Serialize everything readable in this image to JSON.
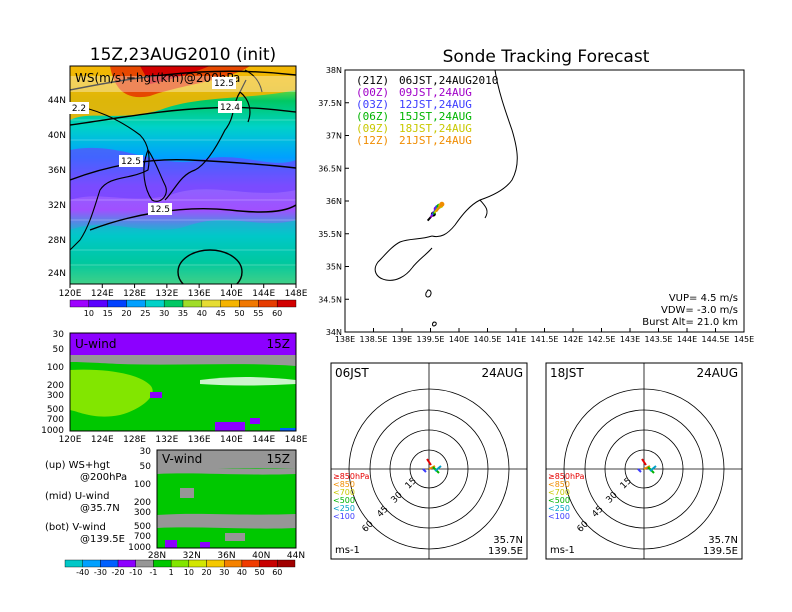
{
  "titles": {
    "left": "15Z,23AUG2010 (init)",
    "right": "Sonde Tracking Forecast"
  },
  "colors": {
    "ws_scale": [
      "#9e00ff",
      "#5a00ff",
      "#0041ff",
      "#00a0ff",
      "#00d2c8",
      "#00c864",
      "#a0dc28",
      "#e6dc32",
      "#f5b400",
      "#f07800",
      "#e63c00",
      "#d20000"
    ],
    "wind_scale": [
      "#00c8c8",
      "#00a0ff",
      "#0060ff",
      "#8c00ff",
      "#969696",
      "#00c800",
      "#82e600",
      "#d2e600",
      "#f5c800",
      "#f58200",
      "#f03c00",
      "#c80000"
    ]
  },
  "chart_data": [
    {
      "type": "heatmap",
      "name": "ws-hgt-map",
      "label": "WS(m/s)+hgt(km)@200hPa",
      "lon_ticks": [
        "120E",
        "124E",
        "128E",
        "132E",
        "136E",
        "140E",
        "144E",
        "148E"
      ],
      "lat_ticks": [
        "44N",
        "40N",
        "36N",
        "32N",
        "28N",
        "24N"
      ],
      "contour_labels": [
        "12.5",
        "2.2",
        "12.4",
        "12.5",
        "12.5"
      ],
      "colorbar": [
        "10",
        "15",
        "20",
        "25",
        "30",
        "35",
        "40",
        "45",
        "50",
        "55",
        "60"
      ]
    },
    {
      "type": "heatmap",
      "name": "u-wind-section",
      "label": "U-wind",
      "time": "15Z",
      "lon_ticks": [
        "120E",
        "124E",
        "128E",
        "132E",
        "136E",
        "140E",
        "144E",
        "148E"
      ],
      "p_ticks": [
        "30",
        "50",
        "100",
        "200",
        "300",
        "500",
        "700",
        "1000"
      ]
    },
    {
      "type": "heatmap",
      "name": "v-wind-section",
      "label": "V-wind",
      "time": "15Z",
      "lat_ticks": [
        "28N",
        "32N",
        "36N",
        "40N",
        "44N"
      ],
      "p_ticks": [
        "30",
        "50",
        "100",
        "200",
        "300",
        "500",
        "700",
        "1000"
      ],
      "colorbar": [
        "-40",
        "-30",
        "-20",
        "-10",
        "-1",
        "1",
        "10",
        "20",
        "30",
        "40",
        "50",
        "60"
      ]
    },
    {
      "type": "line",
      "name": "sonde-tracking-map",
      "x_ticks": [
        "138E",
        "138.5E",
        "139E",
        "139.5E",
        "140E",
        "140.5E",
        "141E",
        "141.5E",
        "142E",
        "142.5E",
        "143E",
        "143.5E",
        "144E",
        "144.5E",
        "145E"
      ],
      "y_ticks": [
        "38N",
        "37.5N",
        "37N",
        "36.5N",
        "36N",
        "35.5N",
        "35N",
        "34.5N",
        "34N"
      ],
      "xlim": [
        138,
        145
      ],
      "ylim": [
        34,
        38
      ],
      "legend": [
        {
          "utc": "(21Z)",
          "jst": "06JST,24AUG2010",
          "color": "#000000"
        },
        {
          "utc": "(00Z)",
          "jst": "09JST,24AUG",
          "color": "#a000c8"
        },
        {
          "utc": "(03Z)",
          "jst": "12JST,24AUG",
          "color": "#3c3cff"
        },
        {
          "utc": "(06Z)",
          "jst": "15JST,24AUG",
          "color": "#00b400"
        },
        {
          "utc": "(09Z)",
          "jst": "18JST,24AUG",
          "color": "#c8c800"
        },
        {
          "utc": "(12Z)",
          "jst": "21JST,24AUG",
          "color": "#f08c00"
        }
      ],
      "tracks": [
        {
          "color": "#000000",
          "x": [
            139.45,
            139.5,
            139.55
          ],
          "y": [
            35.7,
            35.75,
            35.8
          ]
        },
        {
          "color": "#a000c8",
          "x": [
            139.5,
            139.55,
            139.6
          ],
          "y": [
            35.75,
            35.82,
            35.88
          ]
        },
        {
          "color": "#3c3cff",
          "x": [
            139.52,
            139.58,
            139.62
          ],
          "y": [
            35.78,
            35.85,
            35.9
          ]
        },
        {
          "color": "#00b400",
          "x": [
            139.55,
            139.6,
            139.65
          ],
          "y": [
            35.8,
            35.86,
            35.92
          ]
        },
        {
          "color": "#c8c800",
          "x": [
            139.57,
            139.62,
            139.68
          ],
          "y": [
            35.82,
            35.88,
            35.93
          ]
        },
        {
          "color": "#f08c00",
          "x": [
            139.6,
            139.65,
            139.7
          ],
          "y": [
            35.84,
            35.9,
            35.95
          ]
        }
      ],
      "info": [
        "VUP= 4.5 m/s",
        "VDW= -3.0 m/s",
        "Burst Alt= 21.0 km"
      ]
    },
    {
      "type": "scatter",
      "name": "hodograph-06jst",
      "time": "06JST",
      "date": "24AUG",
      "ring_labels": [
        "15",
        "30",
        "45",
        "60"
      ],
      "unit": "ms-1",
      "lat": "35.7N",
      "lon": "139.5E",
      "legend": [
        {
          "label": "≥850hPa",
          "color": "#e60000"
        },
        {
          "label": "<850",
          "color": "#f08c00"
        },
        {
          "label": "<700",
          "color": "#c8c800"
        },
        {
          "label": "<500",
          "color": "#00b400"
        },
        {
          "label": "<250",
          "color": "#00a0c8"
        },
        {
          "label": "<100",
          "color": "#3c3cff"
        }
      ]
    },
    {
      "type": "scatter",
      "name": "hodograph-18jst",
      "time": "18JST",
      "date": "24AUG",
      "ring_labels": [
        "15",
        "30",
        "45",
        "60"
      ],
      "unit": "ms-1",
      "lat": "35.7N",
      "lon": "139.5E",
      "legend": [
        {
          "label": "≥850hPa",
          "color": "#e60000"
        },
        {
          "label": "<850",
          "color": "#f08c00"
        },
        {
          "label": "<700",
          "color": "#c8c800"
        },
        {
          "label": "<500",
          "color": "#00b400"
        },
        {
          "label": "<250",
          "color": "#00a0c8"
        },
        {
          "label": "<100",
          "color": "#3c3cff"
        }
      ]
    }
  ],
  "notes": [
    {
      "line1": "(up) WS+hgt",
      "line2": "@200hPa"
    },
    {
      "line1": "(mid) U-wind",
      "line2": "@35.7N"
    },
    {
      "line1": "(bot) V-wind",
      "line2": "@139.5E"
    }
  ]
}
